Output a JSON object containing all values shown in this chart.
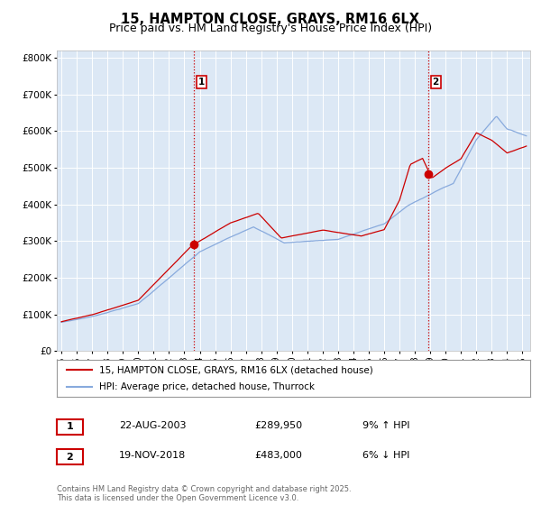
{
  "title": "15, HAMPTON CLOSE, GRAYS, RM16 6LX",
  "subtitle": "Price paid vs. HM Land Registry's House Price Index (HPI)",
  "title_fontsize": 10.5,
  "subtitle_fontsize": 9,
  "bg_color": "#ffffff",
  "plot_bg_color": "#dce8f5",
  "grid_color": "#ffffff",
  "red_color": "#cc0000",
  "blue_color": "#88aadd",
  "marker1_date": 2003.64,
  "marker1_value": 289950,
  "marker2_date": 2018.89,
  "marker2_value": 483000,
  "annotation1_date": "22-AUG-2003",
  "annotation1_price": "£289,950",
  "annotation1_hpi": "9% ↑ HPI",
  "annotation2_date": "19-NOV-2018",
  "annotation2_price": "£483,000",
  "annotation2_hpi": "6% ↓ HPI",
  "legend_label_red": "15, HAMPTON CLOSE, GRAYS, RM16 6LX (detached house)",
  "legend_label_blue": "HPI: Average price, detached house, Thurrock",
  "footer": "Contains HM Land Registry data © Crown copyright and database right 2025.\nThis data is licensed under the Open Government Licence v3.0.",
  "ylim": [
    0,
    820000
  ],
  "xlim_start": 1994.7,
  "xlim_end": 2025.5,
  "yticks": [
    0,
    100000,
    200000,
    300000,
    400000,
    500000,
    600000,
    700000,
    800000
  ],
  "ytick_labels": [
    "£0",
    "£100K",
    "£200K",
    "£300K",
    "£400K",
    "£500K",
    "£600K",
    "£700K",
    "£800K"
  ],
  "xticks": [
    1995,
    1996,
    1997,
    1998,
    1999,
    2000,
    2001,
    2002,
    2003,
    2004,
    2005,
    2006,
    2007,
    2008,
    2009,
    2010,
    2011,
    2012,
    2013,
    2014,
    2015,
    2016,
    2017,
    2018,
    2019,
    2020,
    2021,
    2022,
    2023,
    2024,
    2025
  ]
}
